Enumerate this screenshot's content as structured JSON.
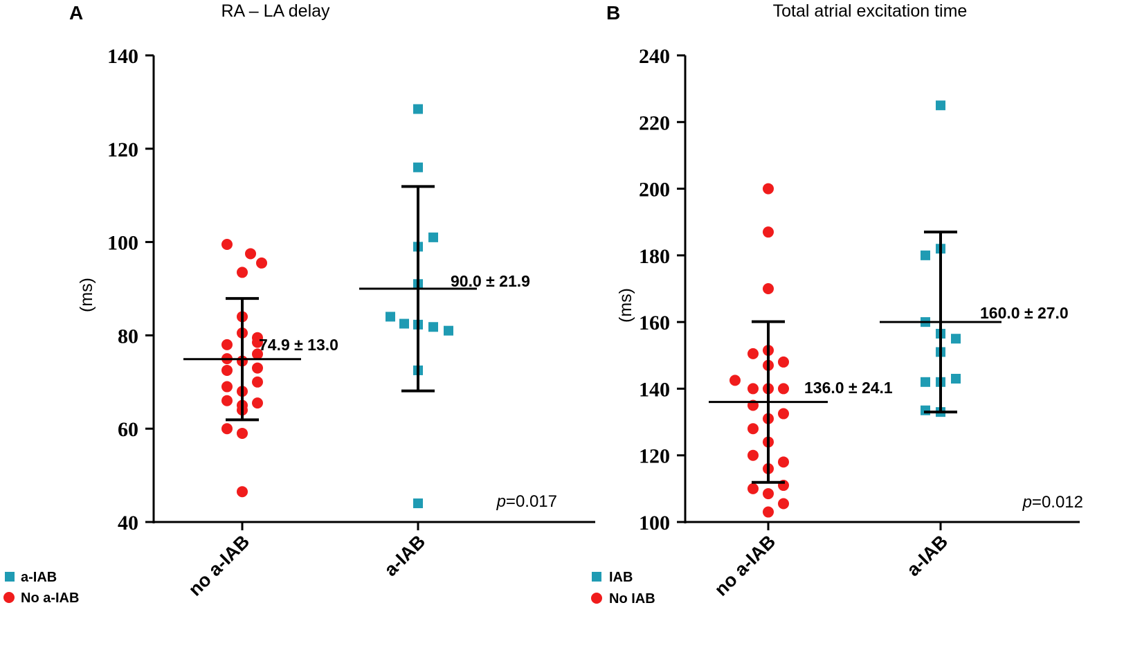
{
  "colors": {
    "group_a_iab": "#1f9bb3",
    "group_no_iab": "#f01c1c",
    "axis": "#000000"
  },
  "chart_data": [
    {
      "panel": "A",
      "type": "scatter",
      "title": "RA – LA delay",
      "ylabel": "(ms)",
      "xlabel": "",
      "ylim": [
        40,
        140
      ],
      "yticks": [
        "40",
        "60",
        "80",
        "100",
        "120",
        "140"
      ],
      "categories": [
        "no a-IAB",
        "a-IAB"
      ],
      "series": [
        {
          "name": "No a-IAB",
          "marker": "circle",
          "category": "no a-IAB",
          "values": [
            99.5,
            97.5,
            95.5,
            93.5,
            84,
            80.5,
            79.5,
            78.5,
            78,
            76,
            75,
            74.5,
            73,
            72.5,
            70,
            69,
            68,
            66,
            65.5,
            65,
            64,
            60,
            59,
            46.5
          ],
          "mean": 74.9,
          "sd": 13.0,
          "summary_label": "74.9 ± 13.0"
        },
        {
          "name": "a-IAB",
          "marker": "square",
          "category": "a-IAB",
          "values": [
            128.5,
            116,
            101,
            99,
            91,
            84,
            82.5,
            82.3,
            81.8,
            81,
            72.5,
            44
          ],
          "mean": 90.0,
          "sd": 21.9,
          "summary_label": "90.0 ± 21.9"
        }
      ],
      "legend": [
        "a-IAB",
        "No a-IAB"
      ],
      "p_prefix": "p",
      "p_value": "=0.017"
    },
    {
      "panel": "B",
      "type": "scatter",
      "title": "Total atrial excitation time",
      "ylabel": "(ms)",
      "xlabel": "",
      "ylim": [
        100,
        240
      ],
      "yticks": [
        "100",
        "120",
        "140",
        "160",
        "180",
        "200",
        "220",
        "240"
      ],
      "categories": [
        "no a-IAB",
        "a-IAB"
      ],
      "series": [
        {
          "name": "No IAB",
          "marker": "circle",
          "category": "no a-IAB",
          "values": [
            200,
            187,
            170,
            151.5,
            150.5,
            148,
            147,
            142.5,
            140,
            140,
            140,
            135,
            132.5,
            131,
            128,
            124,
            120,
            118,
            116,
            111,
            110,
            108.5,
            105.5,
            103
          ],
          "mean": 136.0,
          "sd": 24.1,
          "summary_label": "136.0 ± 24.1"
        },
        {
          "name": "IAB",
          "marker": "square",
          "category": "a-IAB",
          "values": [
            225,
            182,
            180,
            160,
            156.5,
            155,
            151,
            143,
            142,
            142,
            133.5,
            133
          ],
          "mean": 160.0,
          "sd": 27.0,
          "summary_label": "160.0 ± 27.0"
        }
      ],
      "legend": [
        "IAB",
        "No IAB"
      ],
      "p_prefix": "p",
      "p_value": "=0.012"
    }
  ]
}
